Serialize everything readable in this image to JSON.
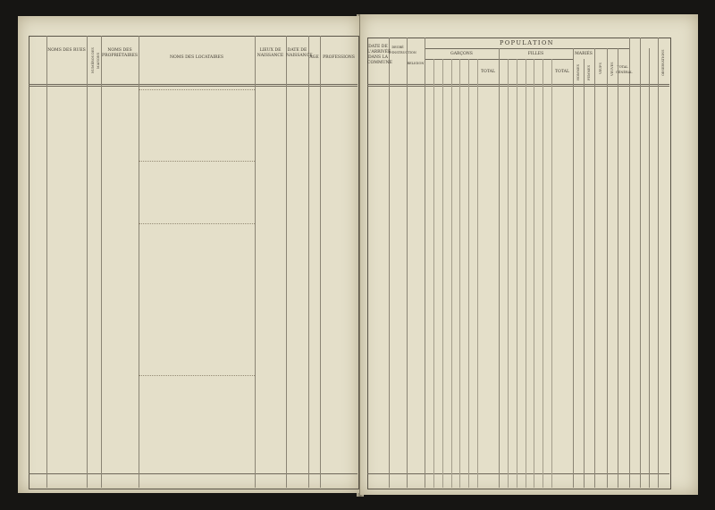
{
  "left_page": {
    "headers": [
      "Noms des rues",
      "Numéros des maisons",
      "Noms des propriétaires",
      "Noms des locataires",
      "Lieux de naissance",
      "Date de naissance",
      "Age",
      "Professions"
    ]
  },
  "right_page": {
    "headers": {
      "arrival": "Date de l'arrivée dans la commune",
      "instruction": "Degré d'instruction",
      "religion": "Religion",
      "population": "POPULATION",
      "boys": "Garçons",
      "girls": "Filles",
      "total": "Total",
      "married": "Mariés",
      "married_men": "Hommes",
      "married_women": "Femmes",
      "widowers": "Veufs",
      "widows": "Veuves",
      "grand_total": "Total général",
      "observations": "Observations"
    }
  }
}
